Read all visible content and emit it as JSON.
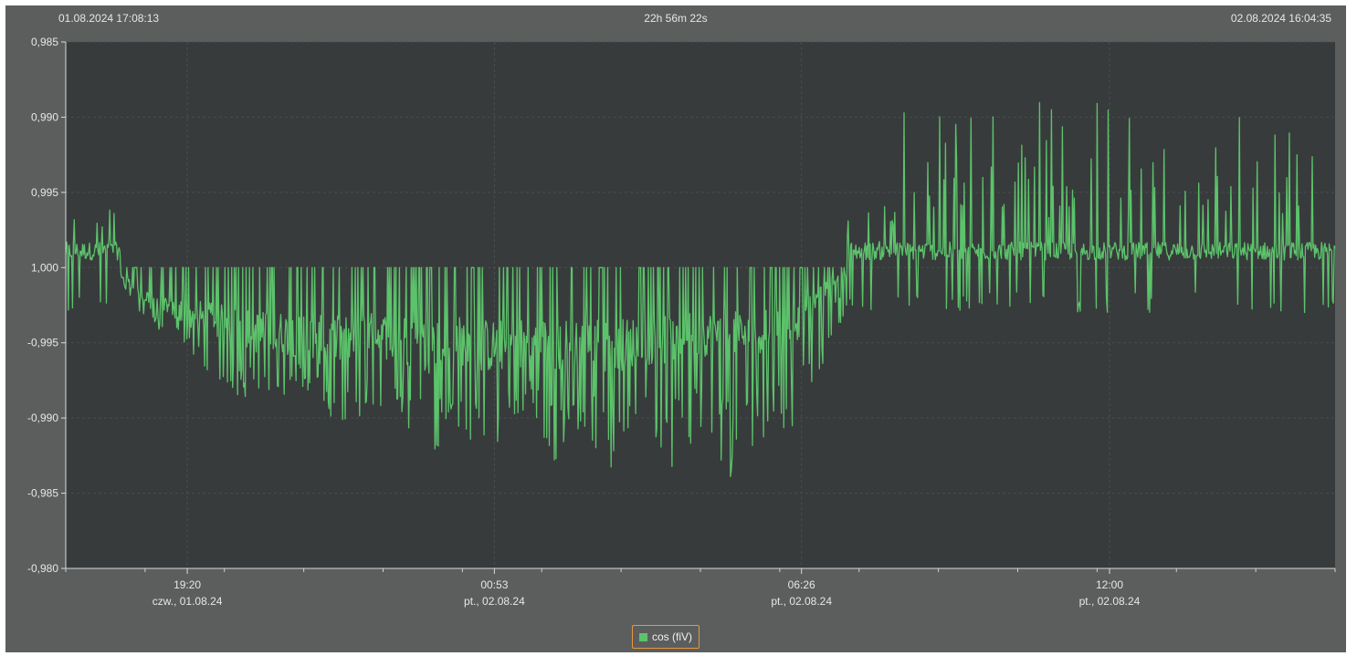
{
  "header": {
    "start": "01.08.2024 17:08:13",
    "duration": "22h 56m 22s",
    "end": "02.08.2024 16:04:35"
  },
  "legend": {
    "label": "cos (fiV)",
    "color": "#5cc36b"
  },
  "colors": {
    "background": "#5c5e5e",
    "plot": "#383b3c",
    "series": "#5cc36b"
  },
  "chart_data": {
    "type": "line",
    "title": "",
    "xlabel": "",
    "ylabel": "",
    "y_axis_note": "power factor axis; values above the 1,000 line are capacitive (decreasing toward 0,985 at top), below are inductive",
    "yticks": [
      "0,985",
      "0,990",
      "0,995",
      "1,000",
      "-0,995",
      "-0,990",
      "-0,985",
      "-0,980"
    ],
    "x_range": [
      "01.08.2024 17:08:13",
      "02.08.2024 16:04:35"
    ],
    "xticks": [
      {
        "time": "19:20",
        "date": "czw., 01.08.24"
      },
      {
        "time": "00:53",
        "date": "pt., 02.08.24"
      },
      {
        "time": "06:26",
        "date": "pt., 02.08.24"
      },
      {
        "time": "12:00",
        "date": "pt., 02.08.24"
      }
    ],
    "grid": true,
    "legend_position": "bottom-center",
    "series": [
      {
        "name": "cos (fiV)",
        "x": [
          "17:08",
          "17:30",
          "18:00",
          "18:30",
          "19:00",
          "19:20",
          "19:45",
          "20:15",
          "20:45",
          "21:15",
          "21:45",
          "22:15",
          "22:45",
          "23:15",
          "23:45",
          "00:15",
          "00:53",
          "01:30",
          "02:00",
          "02:30",
          "03:00",
          "03:30",
          "04:00",
          "04:30",
          "05:00",
          "05:30",
          "06:00",
          "06:26",
          "07:00",
          "07:30",
          "08:00",
          "08:30",
          "09:00",
          "09:30",
          "10:00",
          "10:30",
          "11:00",
          "11:30",
          "12:00",
          "12:30",
          "13:00",
          "13:30",
          "14:00",
          "14:30",
          "15:00",
          "15:30",
          "16:04"
        ],
        "y_envelope_min": [
          0.9995,
          0.9998,
          1.0,
          0.9965,
          0.9955,
          0.9945,
          0.993,
          0.9915,
          0.9905,
          0.992,
          0.9905,
          0.9885,
          0.991,
          0.9895,
          0.9875,
          0.989,
          0.9875,
          0.99,
          0.987,
          0.989,
          0.9865,
          0.9885,
          0.9855,
          0.988,
          0.9858,
          0.9865,
          0.989,
          0.9895,
          0.9955,
          0.9985,
          1.0,
          1.0,
          1.0,
          1.0,
          1.0,
          1.0,
          1.0,
          1.0,
          1.0,
          1.0,
          1.0,
          1.0,
          1.0,
          1.0,
          1.0,
          1.0,
          1.0
        ],
        "y_typical": [
          1.0,
          1.0,
          1.0,
          0.998,
          0.997,
          0.9965,
          0.996,
          0.9955,
          0.995,
          0.995,
          0.9945,
          0.9945,
          0.995,
          0.9945,
          0.994,
          0.9945,
          0.994,
          0.9945,
          0.994,
          0.9945,
          0.994,
          0.9945,
          0.9945,
          0.995,
          0.995,
          0.995,
          0.9955,
          0.996,
          0.999,
          1.0,
          1.0,
          1.0,
          1.0,
          1.0,
          1.0,
          1.0,
          1.0,
          1.0,
          1.0,
          1.0,
          1.0,
          1.0,
          1.0,
          1.0,
          1.0,
          1.0,
          1.0
        ]
      }
    ]
  }
}
